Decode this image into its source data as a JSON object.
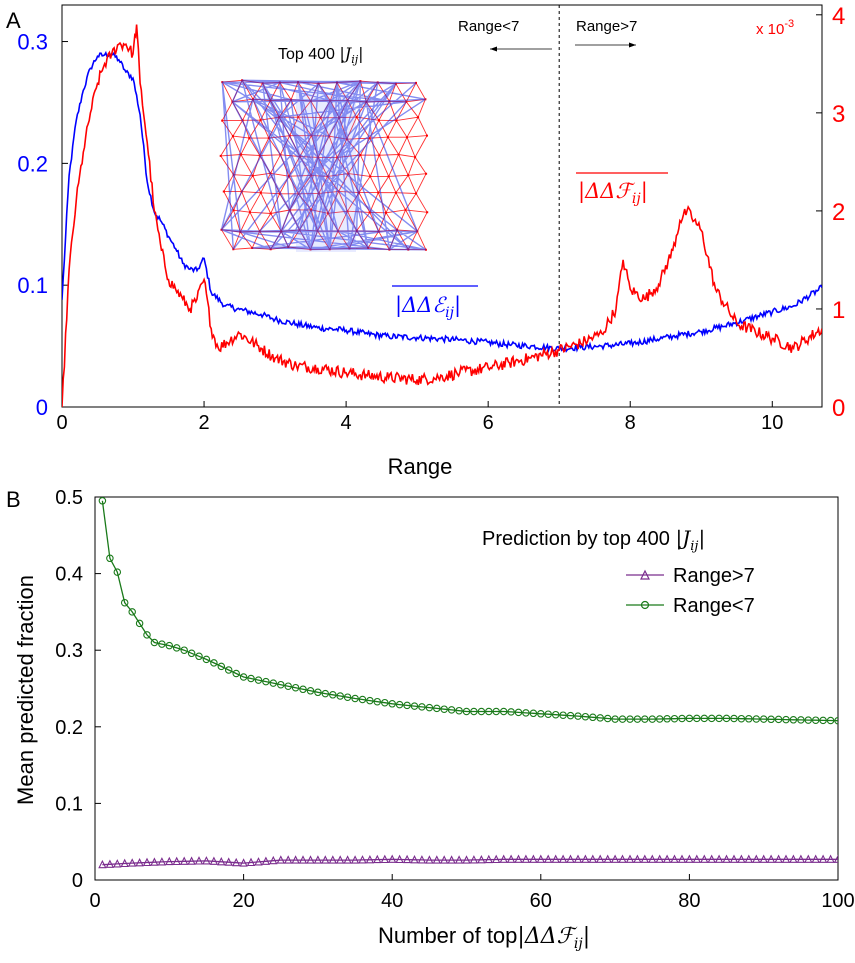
{
  "chart_data": [
    {
      "panel_label": "A",
      "type": "line",
      "xlabel": "Range",
      "xlim": [
        0,
        10.7
      ],
      "x_ticks": [
        0,
        2,
        4,
        6,
        8,
        10
      ],
      "y_left": {
        "lim": [
          0,
          0.33
        ],
        "ticks": [
          0,
          0.1,
          0.2,
          0.3
        ],
        "color": "#0000ff"
      },
      "y_right": {
        "lim": [
          0,
          0.0041
        ],
        "ticks": [
          0,
          1,
          2,
          3,
          4
        ],
        "scale_label": "x 10 -3",
        "scale_text": "x 10",
        "scale_exp": "-3",
        "color": "#ff0000"
      },
      "divider_x": 7,
      "annotations": {
        "range_lt": "Range<7",
        "range_gt": "Range>7",
        "inset_title_text": "Top 400",
        "inset_title_math": "|J",
        "inset_title_sub": "ij",
        "blue_label_math": "|ΔΔℰ",
        "blue_label_sub": "ij",
        "red_label_math": "|ΔΔℱ",
        "red_label_sub": "ij"
      },
      "series": [
        {
          "color": "#0000ff",
          "axis": "left",
          "x": [
            0,
            0.1,
            0.2,
            0.3,
            0.4,
            0.5,
            0.6,
            0.7,
            0.8,
            0.9,
            1.0,
            1.1,
            1.2,
            1.3,
            1.4,
            1.5,
            1.6,
            1.7,
            1.8,
            1.9,
            2.0,
            2.1,
            2.3,
            2.5,
            2.8,
            3.0,
            3.3,
            3.6,
            4.0,
            4.3,
            4.6,
            5.0,
            5.3,
            5.6,
            6.0,
            6.3,
            6.6,
            7.0,
            7.3,
            7.6,
            8.0,
            8.3,
            8.6,
            9.0,
            9.3,
            9.6,
            10.0,
            10.3,
            10.7
          ],
          "y": [
            0.088,
            0.19,
            0.235,
            0.26,
            0.278,
            0.288,
            0.289,
            0.29,
            0.285,
            0.275,
            0.27,
            0.24,
            0.185,
            0.16,
            0.152,
            0.14,
            0.13,
            0.118,
            0.113,
            0.112,
            0.122,
            0.094,
            0.083,
            0.08,
            0.076,
            0.072,
            0.068,
            0.065,
            0.063,
            0.06,
            0.058,
            0.057,
            0.056,
            0.055,
            0.053,
            0.051,
            0.05,
            0.048,
            0.049,
            0.05,
            0.052,
            0.055,
            0.058,
            0.062,
            0.066,
            0.071,
            0.078,
            0.083,
            0.098
          ]
        },
        {
          "color": "#ff0000",
          "axis": "right",
          "x": [
            0,
            0.1,
            0.2,
            0.3,
            0.4,
            0.5,
            0.6,
            0.7,
            0.8,
            0.9,
            1.0,
            1.05,
            1.1,
            1.2,
            1.3,
            1.4,
            1.5,
            1.6,
            1.7,
            1.8,
            1.9,
            2.0,
            2.1,
            2.2,
            2.5,
            2.8,
            3.0,
            3.3,
            3.6,
            4.0,
            4.3,
            4.6,
            5.0,
            5.3,
            5.6,
            6.0,
            6.3,
            6.6,
            7.0,
            7.3,
            7.6,
            7.8,
            7.9,
            8.0,
            8.2,
            8.4,
            8.6,
            8.7,
            8.8,
            8.9,
            9.0,
            9.2,
            9.5,
            10.0,
            10.3,
            10.7
          ],
          "y": [
            0.0,
            0.0014,
            0.0021,
            0.0026,
            0.003,
            0.0033,
            0.0035,
            0.0036,
            0.0037,
            0.0037,
            0.0036,
            0.0039,
            0.0033,
            0.0027,
            0.002,
            0.0016,
            0.0013,
            0.0012,
            0.0011,
            0.001,
            0.0011,
            0.0013,
            0.0008,
            0.0006,
            0.00075,
            0.0006,
            0.0005,
            0.00042,
            0.0004,
            0.00035,
            0.00032,
            0.0003,
            0.00028,
            0.0003,
            0.00035,
            0.0004,
            0.00045,
            0.0005,
            0.00058,
            0.00065,
            0.00075,
            0.001,
            0.0015,
            0.0012,
            0.0011,
            0.00125,
            0.0016,
            0.0019,
            0.002,
            0.0019,
            0.0018,
            0.0012,
            0.00085,
            0.0007,
            0.0006,
            0.0008
          ]
        }
      ]
    },
    {
      "panel_label": "B",
      "type": "line",
      "xlabel_text": "Number of top",
      "xlabel_math": "|ΔΔℱ",
      "xlabel_sub": "ij",
      "ylabel": "Mean predicted fraction",
      "xlim": [
        0,
        100
      ],
      "ylim": [
        0,
        0.5
      ],
      "x_ticks": [
        0,
        20,
        40,
        60,
        80,
        100
      ],
      "y_ticks": [
        0,
        0.1,
        0.2,
        0.3,
        0.4,
        0.5
      ],
      "legend": {
        "title_text": "Prediction by top 400",
        "title_math": "|J",
        "title_sub": "ij",
        "placement": "top-right"
      },
      "series": [
        {
          "name": "Range>7",
          "color": "#7b2d8e",
          "marker": "triangle",
          "x": [
            1,
            5,
            10,
            15,
            20,
            25,
            30,
            35,
            40,
            45,
            50,
            55,
            60,
            65,
            70,
            75,
            80,
            85,
            90,
            95,
            100
          ],
          "y": [
            0.02,
            0.022,
            0.024,
            0.025,
            0.022,
            0.026,
            0.026,
            0.026,
            0.027,
            0.026,
            0.026,
            0.027,
            0.027,
            0.027,
            0.027,
            0.027,
            0.027,
            0.027,
            0.027,
            0.027,
            0.027
          ]
        },
        {
          "name": "Range<7",
          "color": "#1a7a1a",
          "marker": "circle",
          "x": [
            1,
            2,
            3,
            4,
            5,
            6,
            7,
            8,
            10,
            12,
            15,
            20,
            25,
            30,
            35,
            40,
            45,
            50,
            55,
            60,
            65,
            70,
            75,
            80,
            85,
            90,
            95,
            100
          ],
          "y": [
            0.495,
            0.42,
            0.402,
            0.362,
            0.35,
            0.335,
            0.32,
            0.31,
            0.306,
            0.3,
            0.288,
            0.265,
            0.255,
            0.245,
            0.237,
            0.23,
            0.225,
            0.22,
            0.22,
            0.217,
            0.214,
            0.21,
            0.21,
            0.211,
            0.211,
            0.21,
            0.209,
            0.208
          ]
        }
      ]
    }
  ]
}
